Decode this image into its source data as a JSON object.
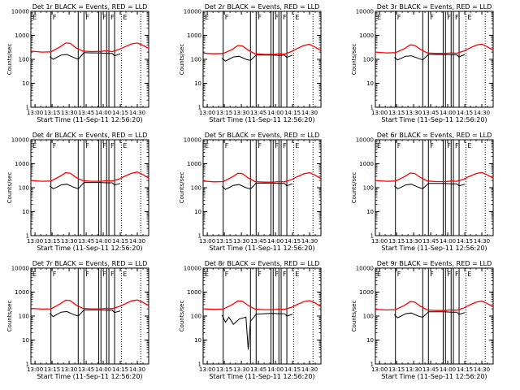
{
  "chart_data": {
    "type": "line",
    "layout": "3x3 grid",
    "xlabel": "Start Time (11-Sep-11 12:56:20)",
    "ylabel": "Counts/sec",
    "y_scale": "log",
    "ylim": [
      1,
      10000
    ],
    "y_ticks": [
      "1",
      "10",
      "100",
      "1000",
      "10000"
    ],
    "xlim": [
      "12:56:20",
      "14:40:00"
    ],
    "x_ticks": [
      "13:00",
      "13:15",
      "13:30",
      "13:45",
      "14:00",
      "14:15",
      "14:30"
    ],
    "series_colors": {
      "events": "#000000",
      "lld": "#ff0000"
    },
    "flag_letters": {
      "start": "E",
      "mid": "F",
      "end": "E"
    },
    "vertical_markers": {
      "solid": [
        "13:14",
        "13:38",
        "13:43",
        "13:56",
        "13:58",
        "14:03",
        "14:05",
        "14:10"
      ],
      "dotted": [
        "14:16",
        "14:33"
      ]
    },
    "panels": [
      {
        "title": "Det 1r BLACK = Events, RED = LLD",
        "lld": [
          [
            "12:56:20",
            220
          ],
          [
            "13:06",
            200
          ],
          [
            "13:14",
            205
          ],
          [
            "13:22",
            330
          ],
          [
            "13:27",
            480
          ],
          [
            "13:31",
            460
          ],
          [
            "13:36",
            300
          ],
          [
            "13:42",
            220
          ],
          [
            "13:50",
            210
          ],
          [
            "13:58",
            215
          ],
          [
            "14:03",
            225
          ],
          [
            "14:08",
            210
          ],
          [
            "14:14",
            260
          ],
          [
            "14:19",
            330
          ],
          [
            "14:25",
            440
          ],
          [
            "14:30",
            480
          ],
          [
            "14:35",
            380
          ],
          [
            "14:40",
            290
          ]
        ],
        "events": [
          [
            "13:13",
            130
          ],
          [
            "13:16",
            100
          ],
          [
            "13:19",
            120
          ],
          [
            "13:23",
            150
          ],
          [
            "13:28",
            160
          ],
          [
            "13:34",
            120
          ],
          [
            "13:38",
            100
          ],
          [
            "13:43",
            190
          ],
          [
            "13:50",
            185
          ],
          [
            "13:57",
            185
          ],
          [
            "14:03",
            175
          ],
          [
            "14:08",
            175
          ],
          [
            "14:10",
            140
          ],
          [
            "14:15",
            170
          ]
        ]
      },
      {
        "title": "Det 2r BLACK = Events, RED = LLD",
        "lld": [
          [
            "12:56:20",
            180
          ],
          [
            "13:06",
            170
          ],
          [
            "13:14",
            175
          ],
          [
            "13:22",
            260
          ],
          [
            "13:27",
            380
          ],
          [
            "13:31",
            360
          ],
          [
            "13:36",
            240
          ],
          [
            "13:42",
            170
          ],
          [
            "13:50",
            160
          ],
          [
            "13:58",
            160
          ],
          [
            "14:03",
            170
          ],
          [
            "14:08",
            165
          ],
          [
            "14:14",
            210
          ],
          [
            "14:19",
            280
          ],
          [
            "14:25",
            380
          ],
          [
            "14:30",
            420
          ],
          [
            "14:35",
            320
          ],
          [
            "14:40",
            230
          ]
        ],
        "events": [
          [
            "13:13",
            110
          ],
          [
            "13:16",
            85
          ],
          [
            "13:19",
            100
          ],
          [
            "13:23",
            125
          ],
          [
            "13:28",
            135
          ],
          [
            "13:34",
            100
          ],
          [
            "13:38",
            90
          ],
          [
            "13:43",
            150
          ],
          [
            "13:50",
            150
          ],
          [
            "13:57",
            150
          ],
          [
            "14:03",
            145
          ],
          [
            "14:08",
            150
          ],
          [
            "14:10",
            120
          ],
          [
            "14:15",
            150
          ]
        ]
      },
      {
        "title": "Det 3r BLACK = Events, RED = LLD",
        "lld": [
          [
            "12:56:20",
            200
          ],
          [
            "13:06",
            185
          ],
          [
            "13:14",
            190
          ],
          [
            "13:22",
            280
          ],
          [
            "13:27",
            400
          ],
          [
            "13:31",
            380
          ],
          [
            "13:36",
            260
          ],
          [
            "13:42",
            185
          ],
          [
            "13:50",
            175
          ],
          [
            "13:58",
            175
          ],
          [
            "14:03",
            185
          ],
          [
            "14:08",
            180
          ],
          [
            "14:14",
            220
          ],
          [
            "14:19",
            290
          ],
          [
            "14:25",
            390
          ],
          [
            "14:30",
            430
          ],
          [
            "14:35",
            330
          ],
          [
            "14:40",
            240
          ]
        ],
        "events": [
          [
            "13:13",
            120
          ],
          [
            "13:16",
            95
          ],
          [
            "13:19",
            110
          ],
          [
            "13:23",
            135
          ],
          [
            "13:28",
            140
          ],
          [
            "13:34",
            110
          ],
          [
            "13:38",
            95
          ],
          [
            "13:43",
            160
          ],
          [
            "13:50",
            160
          ],
          [
            "13:57",
            160
          ],
          [
            "14:03",
            155
          ],
          [
            "14:08",
            155
          ],
          [
            "14:10",
            125
          ],
          [
            "14:15",
            160
          ]
        ]
      },
      {
        "title": "Det 4r BLACK = Events, RED = LLD",
        "lld": [
          [
            "12:56:20",
            200
          ],
          [
            "13:06",
            185
          ],
          [
            "13:14",
            190
          ],
          [
            "13:22",
            300
          ],
          [
            "13:27",
            420
          ],
          [
            "13:31",
            400
          ],
          [
            "13:36",
            270
          ],
          [
            "13:42",
            195
          ],
          [
            "13:50",
            185
          ],
          [
            "13:58",
            185
          ],
          [
            "14:03",
            195
          ],
          [
            "14:08",
            190
          ],
          [
            "14:14",
            230
          ],
          [
            "14:19",
            300
          ],
          [
            "14:25",
            400
          ],
          [
            "14:30",
            450
          ],
          [
            "14:35",
            350
          ],
          [
            "14:40",
            250
          ]
        ],
        "events": [
          [
            "13:13",
            120
          ],
          [
            "13:16",
            90
          ],
          [
            "13:19",
            105
          ],
          [
            "13:23",
            130
          ],
          [
            "13:28",
            140
          ],
          [
            "13:34",
            105
          ],
          [
            "13:38",
            90
          ],
          [
            "13:43",
            165
          ],
          [
            "13:50",
            165
          ],
          [
            "13:57",
            165
          ],
          [
            "14:03",
            160
          ],
          [
            "14:08",
            160
          ],
          [
            "14:10",
            130
          ],
          [
            "14:15",
            150
          ]
        ]
      },
      {
        "title": "Det 5r BLACK = Events, RED = LLD",
        "lld": [
          [
            "12:56:20",
            190
          ],
          [
            "13:06",
            175
          ],
          [
            "13:14",
            180
          ],
          [
            "13:22",
            280
          ],
          [
            "13:27",
            400
          ],
          [
            "13:31",
            380
          ],
          [
            "13:36",
            255
          ],
          [
            "13:42",
            180
          ],
          [
            "13:50",
            170
          ],
          [
            "13:58",
            170
          ],
          [
            "14:03",
            180
          ],
          [
            "14:08",
            175
          ],
          [
            "14:14",
            215
          ],
          [
            "14:19",
            285
          ],
          [
            "14:25",
            380
          ],
          [
            "14:30",
            420
          ],
          [
            "14:35",
            330
          ],
          [
            "14:40",
            240
          ]
        ],
        "events": [
          [
            "13:13",
            115
          ],
          [
            "13:16",
            85
          ],
          [
            "13:19",
            100
          ],
          [
            "13:23",
            125
          ],
          [
            "13:28",
            135
          ],
          [
            "13:34",
            100
          ],
          [
            "13:38",
            88
          ],
          [
            "13:43",
            155
          ],
          [
            "13:50",
            155
          ],
          [
            "13:57",
            155
          ],
          [
            "14:03",
            150
          ],
          [
            "14:08",
            150
          ],
          [
            "14:10",
            120
          ],
          [
            "14:15",
            145
          ]
        ]
      },
      {
        "title": "Det 6r BLACK = Events, RED = LLD",
        "lld": [
          [
            "12:56:20",
            200
          ],
          [
            "13:06",
            185
          ],
          [
            "13:14",
            190
          ],
          [
            "13:22",
            290
          ],
          [
            "13:27",
            410
          ],
          [
            "13:31",
            390
          ],
          [
            "13:36",
            265
          ],
          [
            "13:42",
            190
          ],
          [
            "13:50",
            180
          ],
          [
            "13:58",
            180
          ],
          [
            "14:03",
            190
          ],
          [
            "14:08",
            185
          ],
          [
            "14:14",
            225
          ],
          [
            "14:19",
            295
          ],
          [
            "14:25",
            390
          ],
          [
            "14:30",
            430
          ],
          [
            "14:35",
            340
          ],
          [
            "14:40",
            245
          ]
        ],
        "events": [
          [
            "13:13",
            120
          ],
          [
            "13:16",
            90
          ],
          [
            "13:19",
            105
          ],
          [
            "13:23",
            130
          ],
          [
            "13:28",
            140
          ],
          [
            "13:34",
            105
          ],
          [
            "13:38",
            90
          ],
          [
            "13:43",
            150
          ],
          [
            "13:50",
            150
          ],
          [
            "13:57",
            150
          ],
          [
            "14:03",
            145
          ],
          [
            "14:08",
            145
          ],
          [
            "14:10",
            120
          ],
          [
            "14:15",
            140
          ]
        ]
      },
      {
        "title": "Det 7r BLACK = Events, RED = LLD",
        "lld": [
          [
            "12:56:20",
            210
          ],
          [
            "13:06",
            195
          ],
          [
            "13:14",
            200
          ],
          [
            "13:22",
            320
          ],
          [
            "13:27",
            460
          ],
          [
            "13:31",
            440
          ],
          [
            "13:36",
            290
          ],
          [
            "13:42",
            210
          ],
          [
            "13:50",
            200
          ],
          [
            "13:58",
            200
          ],
          [
            "14:03",
            210
          ],
          [
            "14:08",
            205
          ],
          [
            "14:14",
            250
          ],
          [
            "14:19",
            320
          ],
          [
            "14:25",
            430
          ],
          [
            "14:30",
            470
          ],
          [
            "14:35",
            370
          ],
          [
            "14:40",
            270
          ]
        ],
        "events": [
          [
            "13:13",
            130
          ],
          [
            "13:16",
            95
          ],
          [
            "13:19",
            115
          ],
          [
            "13:23",
            145
          ],
          [
            "13:28",
            155
          ],
          [
            "13:34",
            115
          ],
          [
            "13:38",
            100
          ],
          [
            "13:43",
            180
          ],
          [
            "13:50",
            180
          ],
          [
            "13:57",
            180
          ],
          [
            "14:03",
            175
          ],
          [
            "14:08",
            175
          ],
          [
            "14:10",
            140
          ],
          [
            "14:15",
            165
          ]
        ]
      },
      {
        "title": "Det 8r BLACK = Events, RED = LLD",
        "lld": [
          [
            "12:56:20",
            200
          ],
          [
            "13:06",
            190
          ],
          [
            "13:14",
            195
          ],
          [
            "13:22",
            300
          ],
          [
            "13:27",
            430
          ],
          [
            "13:31",
            410
          ],
          [
            "13:36",
            275
          ],
          [
            "13:42",
            195
          ],
          [
            "13:50",
            185
          ],
          [
            "13:58",
            185
          ],
          [
            "14:03",
            195
          ],
          [
            "14:08",
            190
          ],
          [
            "14:14",
            230
          ],
          [
            "14:19",
            300
          ],
          [
            "14:25",
            400
          ],
          [
            "14:30",
            440
          ],
          [
            "14:35",
            350
          ],
          [
            "14:40",
            250
          ]
        ],
        "events": [
          [
            "13:13",
            110
          ],
          [
            "13:16",
            55
          ],
          [
            "13:19",
            90
          ],
          [
            "13:23",
            45
          ],
          [
            "13:28",
            75
          ],
          [
            "13:34",
            90
          ],
          [
            "13:36",
            4
          ],
          [
            "13:38",
            60
          ],
          [
            "13:43",
            120
          ],
          [
            "13:50",
            125
          ],
          [
            "13:57",
            130
          ],
          [
            "14:03",
            125
          ],
          [
            "14:08",
            125
          ],
          [
            "14:10",
            100
          ],
          [
            "14:15",
            120
          ]
        ]
      },
      {
        "title": "Det 9r BLACK = Events, RED = LLD",
        "lld": [
          [
            "12:56:20",
            190
          ],
          [
            "13:06",
            180
          ],
          [
            "13:14",
            185
          ],
          [
            "13:22",
            280
          ],
          [
            "13:27",
            400
          ],
          [
            "13:31",
            380
          ],
          [
            "13:36",
            255
          ],
          [
            "13:42",
            180
          ],
          [
            "13:50",
            170
          ],
          [
            "13:58",
            170
          ],
          [
            "14:03",
            180
          ],
          [
            "14:08",
            175
          ],
          [
            "14:14",
            215
          ],
          [
            "14:19",
            285
          ],
          [
            "14:25",
            380
          ],
          [
            "14:30",
            420
          ],
          [
            "14:35",
            330
          ],
          [
            "14:40",
            240
          ]
        ],
        "events": [
          [
            "13:13",
            115
          ],
          [
            "13:16",
            85
          ],
          [
            "13:19",
            100
          ],
          [
            "13:23",
            125
          ],
          [
            "13:28",
            135
          ],
          [
            "13:34",
            100
          ],
          [
            "13:38",
            88
          ],
          [
            "13:43",
            150
          ],
          [
            "13:50",
            150
          ],
          [
            "13:57",
            150
          ],
          [
            "14:03",
            145
          ],
          [
            "14:08",
            145
          ],
          [
            "14:10",
            118
          ],
          [
            "14:15",
            140
          ]
        ]
      }
    ]
  }
}
